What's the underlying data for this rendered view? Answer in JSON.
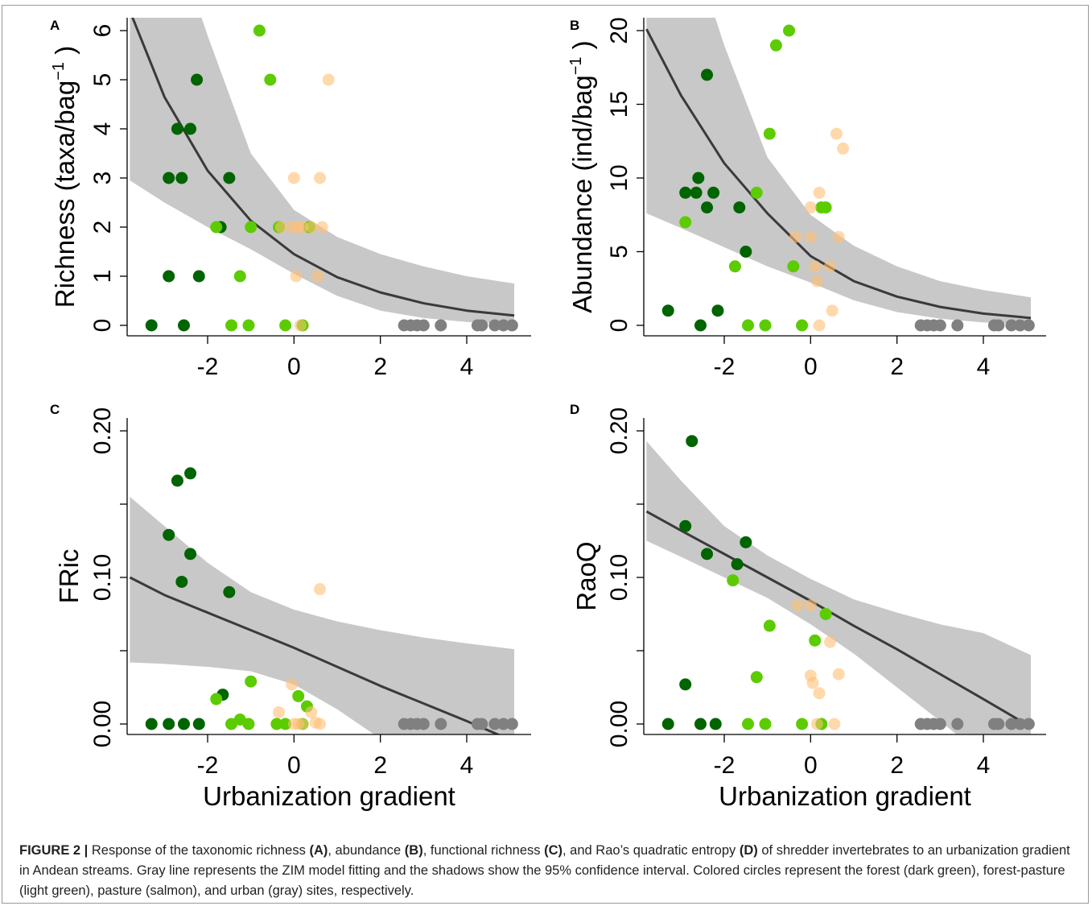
{
  "colors": {
    "forest": "#006400",
    "forest_pasture": "#5ccc00",
    "pasture": "#ffbf75",
    "urban": "#808080",
    "confidence_band": "#c8c8c8",
    "fit_line": "#3a3a3a"
  },
  "caption": {
    "label": "FIGURE 2 |",
    "t1": " Response of the taxonomic richness ",
    "b1": "(A)",
    "t2": ", abundance ",
    "b2": "(B)",
    "t3": ", functional richness ",
    "b3": "(C)",
    "t4": ", and Rao’s quadratic entropy ",
    "b4": "(D)",
    "t5": " of shredder invertebrates to an urbanization gradient in Andean streams. Gray line represents the ZIM model fitting and the shadows show the 95% confidence interval. Colored circles represent the forest (dark green), forest-pasture (light green), pasture (salmon), and urban (gray) sites, respectively."
  },
  "chart_data": [
    {
      "panel": "A",
      "type": "scatter",
      "xlabel": "",
      "ylabel": "Richness (taxa/bag",
      "ylabel_sup": "−1",
      "ylabel_close": ")",
      "xlim": [
        -3.8,
        5.3
      ],
      "ylim": [
        0,
        6
      ],
      "xticks": [
        -2,
        0,
        2,
        4
      ],
      "yticks": [
        0,
        1,
        2,
        3,
        4,
        5,
        6
      ],
      "ytick_labels": [
        "0",
        "1",
        "2",
        "3",
        "4",
        "5",
        "6"
      ],
      "fit": {
        "x": [
          -3.8,
          -3.0,
          -2.0,
          -1.0,
          0.0,
          1.0,
          2.0,
          3.0,
          4.0,
          5.1
        ],
        "y": [
          6.4,
          4.65,
          3.15,
          2.13,
          1.45,
          0.98,
          0.67,
          0.45,
          0.3,
          0.2
        ],
        "lower": [
          2.95,
          2.5,
          2.0,
          1.55,
          1.05,
          0.6,
          0.3,
          0.15,
          0.07,
          0.03
        ],
        "upper": [
          9.0,
          8.5,
          5.9,
          3.5,
          2.35,
          1.8,
          1.45,
          1.2,
          1.0,
          0.85
        ]
      },
      "series": [
        {
          "category": "forest",
          "points": [
            [
              -3.3,
              0
            ],
            [
              -2.55,
              0
            ],
            [
              -2.9,
              1
            ],
            [
              -2.2,
              1
            ],
            [
              -1.7,
              2
            ],
            [
              -2.9,
              3
            ],
            [
              -2.6,
              3
            ],
            [
              -1.5,
              3
            ],
            [
              -2.7,
              4
            ],
            [
              -2.4,
              4
            ],
            [
              -2.25,
              5
            ]
          ]
        },
        {
          "category": "forest_pasture",
          "points": [
            [
              -1.45,
              0
            ],
            [
              -1.05,
              0
            ],
            [
              -0.2,
              0
            ],
            [
              0.2,
              0
            ],
            [
              -1.25,
              1
            ],
            [
              -1.8,
              2
            ],
            [
              -1.0,
              2
            ],
            [
              -0.35,
              2
            ],
            [
              0.35,
              2
            ],
            [
              -0.55,
              5
            ],
            [
              -0.8,
              6
            ]
          ]
        },
        {
          "category": "pasture",
          "points": [
            [
              0.15,
              0
            ],
            [
              0.05,
              1
            ],
            [
              0.55,
              1
            ],
            [
              -0.3,
              2
            ],
            [
              -0.05,
              2
            ],
            [
              0.1,
              2
            ],
            [
              0.2,
              2
            ],
            [
              0.4,
              2
            ],
            [
              0.65,
              2
            ],
            [
              0.0,
              3
            ],
            [
              0.6,
              3
            ],
            [
              0.8,
              5
            ]
          ]
        },
        {
          "category": "urban",
          "points": [
            [
              2.55,
              0
            ],
            [
              2.7,
              0
            ],
            [
              2.85,
              0
            ],
            [
              3.0,
              0
            ],
            [
              3.4,
              0
            ],
            [
              4.25,
              0
            ],
            [
              4.35,
              0
            ],
            [
              4.65,
              0
            ],
            [
              4.85,
              0
            ],
            [
              5.05,
              0
            ]
          ]
        }
      ]
    },
    {
      "panel": "B",
      "type": "scatter",
      "xlabel": "",
      "ylabel": "Abundance (ind/bag",
      "ylabel_sup": "−1",
      "ylabel_close": ")",
      "xlim": [
        -3.8,
        5.3
      ],
      "ylim": [
        0,
        20
      ],
      "xticks": [
        -2,
        0,
        2,
        4
      ],
      "yticks": [
        0,
        5,
        10,
        15,
        20
      ],
      "ytick_labels": [
        "0",
        "5",
        "10",
        "15",
        "20"
      ],
      "fit": {
        "x": [
          -3.8,
          -3.0,
          -2.0,
          -1.0,
          0.0,
          1.0,
          2.0,
          3.0,
          4.0,
          5.1
        ],
        "y": [
          20.1,
          15.6,
          11.0,
          7.6,
          4.7,
          3.0,
          1.95,
          1.25,
          0.8,
          0.5
        ],
        "lower": [
          7.6,
          6.6,
          5.3,
          4.0,
          2.9,
          1.7,
          0.9,
          0.45,
          0.2,
          0.08
        ],
        "upper": [
          35.0,
          28.0,
          19.0,
          11.4,
          7.5,
          5.4,
          4.0,
          3.0,
          2.4,
          1.9
        ]
      },
      "series": [
        {
          "category": "forest",
          "points": [
            [
              -3.3,
              1
            ],
            [
              -2.55,
              0
            ],
            [
              -2.15,
              1
            ],
            [
              -2.4,
              17
            ],
            [
              -2.9,
              9
            ],
            [
              -2.65,
              9
            ],
            [
              -2.6,
              10
            ],
            [
              -2.4,
              8
            ],
            [
              -2.25,
              9
            ],
            [
              -1.65,
              8
            ],
            [
              -1.5,
              5
            ]
          ]
        },
        {
          "category": "forest_pasture",
          "points": [
            [
              -2.9,
              7
            ],
            [
              -1.45,
              0
            ],
            [
              -1.05,
              0
            ],
            [
              -0.2,
              0
            ],
            [
              -1.75,
              4
            ],
            [
              -0.4,
              4
            ],
            [
              -1.25,
              9
            ],
            [
              -0.95,
              13
            ],
            [
              0.25,
              8
            ],
            [
              0.35,
              8
            ],
            [
              -0.8,
              19
            ],
            [
              -0.5,
              20
            ]
          ]
        },
        {
          "category": "pasture",
          "points": [
            [
              0.2,
              0
            ],
            [
              0.5,
              1
            ],
            [
              0.15,
              3
            ],
            [
              0.1,
              4
            ],
            [
              0.45,
              4
            ],
            [
              -0.35,
              6
            ],
            [
              0.0,
              6
            ],
            [
              0.65,
              6
            ],
            [
              0.0,
              8
            ],
            [
              0.2,
              9
            ],
            [
              0.6,
              13
            ],
            [
              0.75,
              12
            ]
          ]
        },
        {
          "category": "urban",
          "points": [
            [
              2.55,
              0
            ],
            [
              2.7,
              0
            ],
            [
              2.85,
              0
            ],
            [
              3.0,
              0
            ],
            [
              3.4,
              0
            ],
            [
              4.25,
              0
            ],
            [
              4.35,
              0
            ],
            [
              4.65,
              0
            ],
            [
              4.85,
              0
            ],
            [
              5.05,
              0
            ]
          ]
        }
      ]
    },
    {
      "panel": "C",
      "type": "scatter",
      "xlabel": "Urbanization gradient",
      "ylabel": "FRic",
      "ylabel_sup": "",
      "ylabel_close": "",
      "xlim": [
        -3.8,
        5.3
      ],
      "ylim": [
        0,
        0.2
      ],
      "xticks": [
        -2,
        0,
        2,
        4
      ],
      "yticks": [
        0,
        0.05,
        0.1,
        0.15,
        0.2
      ],
      "ytick_labels": [
        "0.00",
        "",
        "0.10",
        "",
        "0.20"
      ],
      "fit": {
        "x": [
          -3.8,
          -3.0,
          -2.0,
          -1.0,
          0.0,
          1.0,
          2.0,
          3.0,
          4.0,
          5.1
        ],
        "y": [
          0.1,
          0.088,
          0.076,
          0.064,
          0.052,
          0.039,
          0.026,
          0.014,
          0.002,
          -0.012
        ],
        "lower": [
          0.042,
          0.041,
          0.039,
          0.036,
          0.027,
          0.01,
          -0.01,
          -0.04,
          -0.07,
          -0.1
        ],
        "upper": [
          0.155,
          0.135,
          0.11,
          0.09,
          0.078,
          0.07,
          0.064,
          0.059,
          0.055,
          0.051
        ]
      },
      "series": [
        {
          "category": "forest",
          "points": [
            [
              -3.3,
              0
            ],
            [
              -2.9,
              0
            ],
            [
              -2.55,
              0
            ],
            [
              -2.2,
              0
            ],
            [
              -1.65,
              0.02
            ],
            [
              -1.5,
              0.09
            ],
            [
              -2.6,
              0.097
            ],
            [
              -2.4,
              0.116
            ],
            [
              -2.9,
              0.129
            ],
            [
              -2.7,
              0.166
            ],
            [
              -2.4,
              0.171
            ]
          ]
        },
        {
          "category": "forest_pasture",
          "points": [
            [
              -1.45,
              0
            ],
            [
              -1.05,
              0
            ],
            [
              -0.4,
              0
            ],
            [
              -0.2,
              0
            ],
            [
              0.2,
              0
            ],
            [
              -1.25,
              0.003
            ],
            [
              -1.8,
              0.017
            ],
            [
              -1.0,
              0.029
            ],
            [
              0.1,
              0.019
            ],
            [
              0.3,
              0.012
            ]
          ]
        },
        {
          "category": "pasture",
          "points": [
            [
              -0.35,
              0.008
            ],
            [
              0.0,
              0
            ],
            [
              0.1,
              0
            ],
            [
              0.2,
              0
            ],
            [
              0.4,
              0.008
            ],
            [
              0.6,
              0
            ],
            [
              0.5,
              0.001
            ],
            [
              -0.05,
              0.027
            ],
            [
              0.6,
              0.092
            ]
          ]
        },
        {
          "category": "urban",
          "points": [
            [
              2.55,
              0
            ],
            [
              2.7,
              0
            ],
            [
              2.85,
              0
            ],
            [
              3.0,
              0
            ],
            [
              3.4,
              0
            ],
            [
              4.25,
              0
            ],
            [
              4.35,
              0
            ],
            [
              4.65,
              0
            ],
            [
              4.85,
              0
            ],
            [
              5.05,
              0
            ]
          ]
        }
      ]
    },
    {
      "panel": "D",
      "type": "scatter",
      "xlabel": "Urbanization gradient",
      "ylabel": "RaoQ",
      "ylabel_sup": "",
      "ylabel_close": "",
      "xlim": [
        -3.8,
        5.3
      ],
      "ylim": [
        0,
        0.2
      ],
      "xticks": [
        -2,
        0,
        2,
        4
      ],
      "yticks": [
        0,
        0.05,
        0.1,
        0.15,
        0.2
      ],
      "ytick_labels": [
        "0.00",
        "",
        "0.10",
        "",
        "0.20"
      ],
      "fit": {
        "x": [
          -3.8,
          -3.0,
          -2.0,
          -1.0,
          0.0,
          1.0,
          2.0,
          3.0,
          4.0,
          5.1
        ],
        "y": [
          0.145,
          0.132,
          0.116,
          0.1,
          0.084,
          0.067,
          0.051,
          0.034,
          0.017,
          -0.002
        ],
        "lower": [
          0.125,
          0.114,
          0.1,
          0.086,
          0.068,
          0.048,
          0.025,
          0.002,
          -0.022,
          -0.048
        ],
        "upper": [
          0.193,
          0.166,
          0.135,
          0.115,
          0.099,
          0.085,
          0.076,
          0.068,
          0.062,
          0.047
        ]
      },
      "series": [
        {
          "category": "forest",
          "points": [
            [
              -3.3,
              0
            ],
            [
              -2.55,
              0
            ],
            [
              -2.2,
              0
            ],
            [
              -2.9,
              0.027
            ],
            [
              -2.75,
              0.193
            ],
            [
              -2.9,
              0.135
            ],
            [
              -2.4,
              0.116
            ],
            [
              -1.7,
              0.109
            ],
            [
              -1.5,
              0.124
            ]
          ]
        },
        {
          "category": "forest_pasture",
          "points": [
            [
              -1.45,
              0
            ],
            [
              -1.05,
              0
            ],
            [
              -0.2,
              0
            ],
            [
              0.25,
              0
            ],
            [
              -1.25,
              0.032
            ],
            [
              -0.95,
              0.067
            ],
            [
              -1.8,
              0.098
            ],
            [
              0.1,
              0.057
            ],
            [
              0.35,
              0.075
            ]
          ]
        },
        {
          "category": "pasture",
          "points": [
            [
              0.15,
              0
            ],
            [
              0.55,
              0
            ],
            [
              0.0,
              0.033
            ],
            [
              0.05,
              0.028
            ],
            [
              0.2,
              0.021
            ],
            [
              0.65,
              0.034
            ],
            [
              0.45,
              0.056
            ],
            [
              -0.3,
              0.081
            ],
            [
              0.0,
              0.081
            ]
          ]
        },
        {
          "category": "urban",
          "points": [
            [
              2.55,
              0
            ],
            [
              2.7,
              0
            ],
            [
              2.85,
              0
            ],
            [
              3.0,
              0
            ],
            [
              3.4,
              0
            ],
            [
              4.25,
              0
            ],
            [
              4.35,
              0
            ],
            [
              4.65,
              0
            ],
            [
              4.85,
              0
            ],
            [
              5.05,
              0
            ]
          ]
        }
      ]
    }
  ]
}
